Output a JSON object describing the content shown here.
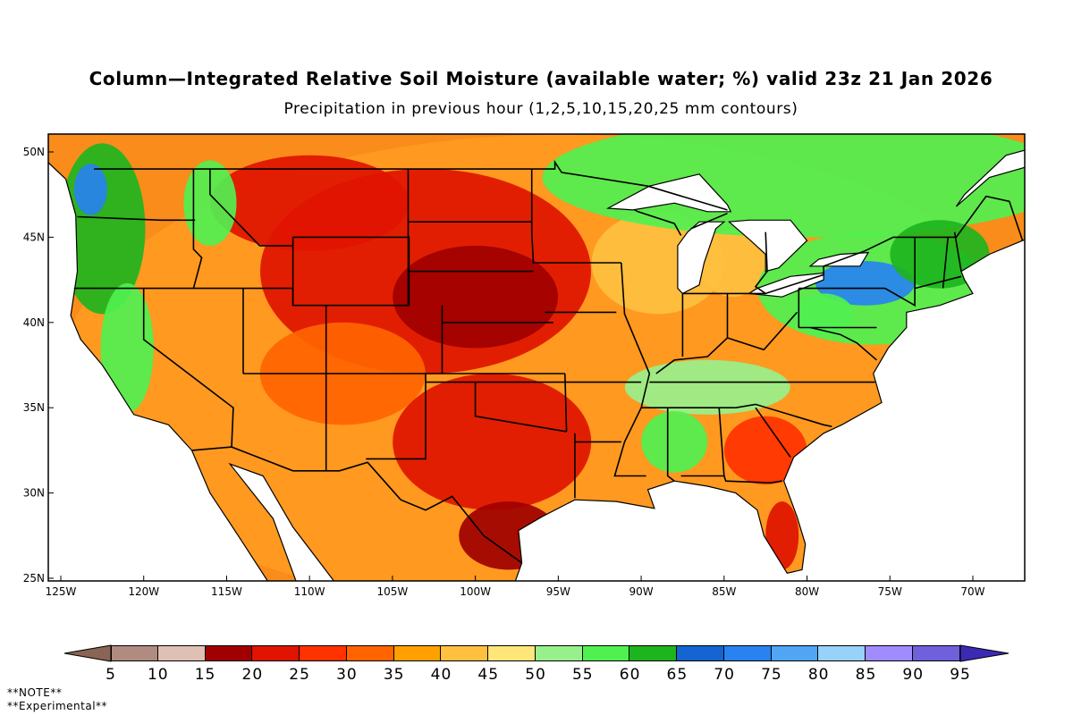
{
  "title": "Column—Integrated Relative Soil Moisture (available water; %) valid 23z 21 Jan 2026",
  "subtitle": "Precipitation in previous hour (1,2,5,10,15,20,25 mm contours)",
  "lat_labels": [
    "25N",
    "30N",
    "35N",
    "40N",
    "45N",
    "50N"
  ],
  "lat_values": [
    25,
    30,
    35,
    40,
    45,
    50
  ],
  "lon_labels": [
    "125W",
    "120W",
    "115W",
    "110W",
    "105W",
    "100W",
    "95W",
    "90W",
    "85W",
    "80W",
    "75W",
    "70W"
  ],
  "lon_values": [
    -125,
    -120,
    -115,
    -110,
    -105,
    -100,
    -95,
    -90,
    -85,
    -80,
    -75,
    -70
  ],
  "colorbar": {
    "labels": [
      "5",
      "10",
      "15",
      "20",
      "25",
      "30",
      "35",
      "40",
      "45",
      "50",
      "55",
      "60",
      "65",
      "70",
      "75",
      "80",
      "85",
      "90",
      "95"
    ],
    "low_color": "#8a6455",
    "high_color": "#3c2ab4",
    "colors": [
      "#b08c80",
      "#e0c0b4",
      "#a00000",
      "#e01400",
      "#ff3200",
      "#ff6400",
      "#ffa000",
      "#ffc040",
      "#ffe678",
      "#98f08c",
      "#50f050",
      "#1eb41e",
      "#1464d2",
      "#2882f0",
      "#50a5f5",
      "#96d2fa",
      "#a08cff",
      "#7060dc"
    ]
  },
  "notes": [
    "**NOTE**",
    "**Experimental**"
  ]
}
